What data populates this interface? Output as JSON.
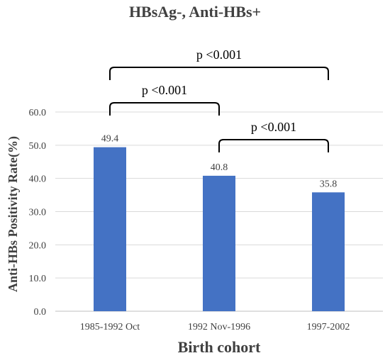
{
  "chart_data": {
    "type": "bar",
    "title": "HBsAg-, Anti-HBs+",
    "xlabel": "Birth cohort",
    "ylabel": "Anti-HBs Positivity Rate(%)",
    "categories": [
      "1985-1992 Oct",
      "1992 Nov-1996",
      "1997-2002"
    ],
    "values": [
      49.4,
      40.8,
      35.8
    ],
    "data_labels": [
      "49.4",
      "40.8",
      "35.8"
    ],
    "ylim": [
      0,
      60
    ],
    "yticks": [
      "0.0",
      "10.0",
      "20.0",
      "30.0",
      "40.0",
      "50.0",
      "60.0"
    ],
    "grid": true,
    "bar_color": "#4472C4",
    "annotations": [
      {
        "text": "p <0.001",
        "from": 0,
        "to": 2
      },
      {
        "text": "p <0.001",
        "from": 0,
        "to": 1
      },
      {
        "text": "p <0.001",
        "from": 1,
        "to": 2
      }
    ]
  }
}
